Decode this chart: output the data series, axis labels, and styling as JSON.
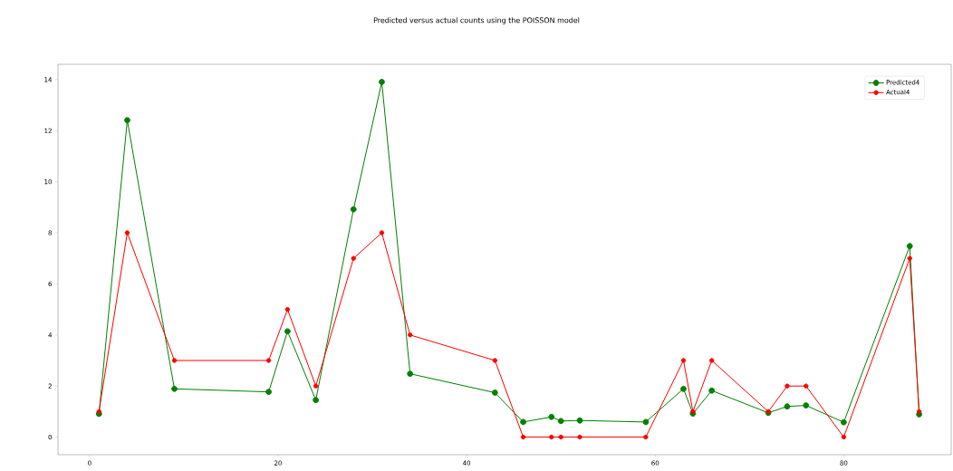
{
  "chart_data": {
    "type": "line",
    "title": "Predicted versus actual counts using the POISSON model",
    "x": [
      1,
      4,
      9,
      19,
      21,
      24,
      28,
      31,
      34,
      43,
      46,
      49,
      50,
      52,
      59,
      63,
      64,
      66,
      72,
      74,
      76,
      80,
      87,
      88
    ],
    "series": [
      {
        "name": "Predicted4",
        "color": "#008000",
        "values": [
          0.91,
          12.41,
          1.89,
          1.77,
          4.14,
          1.45,
          8.92,
          13.91,
          2.48,
          1.74,
          0.59,
          0.79,
          0.63,
          0.65,
          0.59,
          1.89,
          0.92,
          1.82,
          0.95,
          1.2,
          1.24,
          0.58,
          7.48,
          0.89
        ]
      },
      {
        "name": "Actual4",
        "color": "#ff0000",
        "values": [
          1,
          8,
          3,
          3,
          5,
          2,
          7,
          8,
          4,
          3,
          0,
          0,
          0,
          0,
          0,
          3,
          1,
          3,
          1,
          2,
          2,
          0,
          7,
          1
        ]
      }
    ],
    "xlim": [
      -3.35,
      91.4
    ],
    "ylim": [
      -0.69,
      14.6
    ],
    "xticks": [
      0,
      20,
      40,
      60,
      80
    ],
    "yticks": [
      0,
      2,
      4,
      6,
      8,
      10,
      12,
      14
    ],
    "legend": "top right",
    "marker": "circle",
    "line_style": "solid"
  }
}
